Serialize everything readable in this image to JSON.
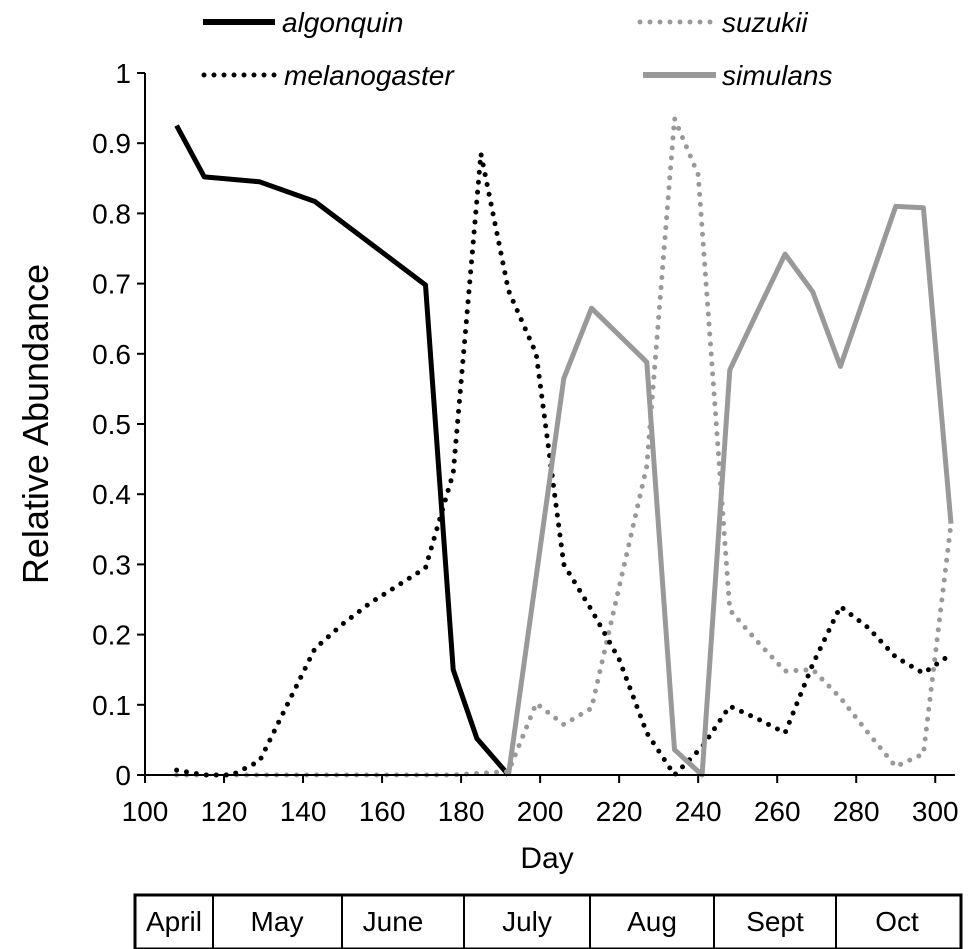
{
  "chart_data": {
    "type": "line",
    "xlabel": "Day",
    "ylabel": "Relative Abundance",
    "xlim": [
      100,
      305
    ],
    "ylim": [
      0,
      1
    ],
    "xticks": [
      100,
      120,
      140,
      160,
      180,
      200,
      220,
      240,
      260,
      280,
      300
    ],
    "yticks": [
      0,
      0.1,
      0.2,
      0.3,
      0.4,
      0.5,
      0.6,
      0.7,
      0.8,
      0.9,
      1
    ],
    "ytick_labels": [
      "0",
      "0.1",
      "0.2",
      "0.3",
      "0.4",
      "0.5",
      "0.6",
      "0.7",
      "0.8",
      "0.9",
      "1"
    ],
    "grid": false,
    "legend_position": "top",
    "series": [
      {
        "name": "algonquin",
        "color": "#000000",
        "style": "solid",
        "x": [
          108,
          115,
          129,
          143,
          171,
          178,
          184,
          192
        ],
        "y": [
          0.925,
          0.852,
          0.845,
          0.817,
          0.698,
          0.15,
          0.052,
          0.0
        ]
      },
      {
        "name": "suzukii",
        "color": "#999999",
        "style": "dotted",
        "x": [
          108,
          122,
          136,
          150,
          164,
          178,
          192,
          199,
          206,
          213,
          227,
          234,
          240,
          248,
          255,
          262,
          269,
          276,
          283,
          290,
          297,
          304
        ],
        "y": [
          0.0,
          0.0,
          0.0,
          0.0,
          0.0,
          0.0,
          0.005,
          0.102,
          0.072,
          0.095,
          0.44,
          0.935,
          0.855,
          0.235,
          0.19,
          0.148,
          0.15,
          0.11,
          0.06,
          0.012,
          0.03,
          0.358
        ]
      },
      {
        "name": "melanogaster",
        "color": "#000000",
        "style": "dotted",
        "x": [
          108,
          115,
          122,
          129,
          136,
          143,
          150,
          157,
          164,
          171,
          178,
          185,
          192,
          199,
          206,
          213,
          220,
          227,
          234,
          241,
          248,
          255,
          262,
          269,
          276,
          283,
          290,
          297,
          304
        ],
        "y": [
          0.007,
          0.0,
          0.0,
          0.02,
          0.1,
          0.18,
          0.215,
          0.245,
          0.27,
          0.295,
          0.43,
          0.885,
          0.69,
          0.6,
          0.3,
          0.235,
          0.165,
          0.06,
          0.0,
          0.04,
          0.098,
          0.08,
          0.06,
          0.158,
          0.24,
          0.21,
          0.168,
          0.145,
          0.172
        ]
      },
      {
        "name": "simulans",
        "color": "#999999",
        "style": "solid",
        "x": [
          192,
          206,
          213,
          227,
          234,
          241,
          248,
          255,
          262,
          269,
          276,
          290,
          297,
          304
        ],
        "y": [
          0.0,
          0.565,
          0.665,
          0.588,
          0.036,
          0.0,
          0.577,
          0.66,
          0.742,
          0.688,
          0.582,
          0.81,
          0.808,
          0.358
        ]
      }
    ],
    "months": [
      "April",
      "May",
      "June",
      "July",
      "Aug",
      "Sept",
      "Oct"
    ]
  }
}
